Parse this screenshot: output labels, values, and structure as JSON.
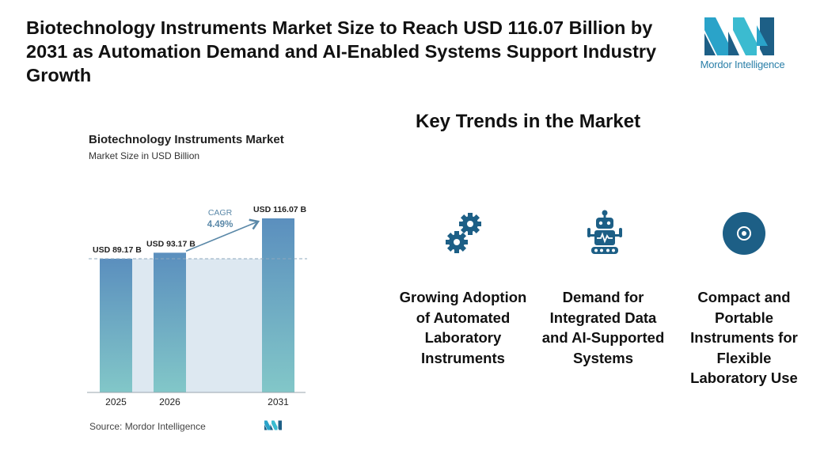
{
  "headline": "Biotechnology Instruments Market Size to Reach USD 116.07 Billion by 2031 as Automation Demand and AI-Enabled Systems Support Industry Growth",
  "logo": {
    "text": "Mordor Intelligence"
  },
  "source": "Source:  Mordor Intelligence",
  "trends": {
    "title": "Key Trends in the Market",
    "items": [
      {
        "label": "Growing Adoption of Automated Laboratory Instruments",
        "icon": "gears-icon"
      },
      {
        "label": "Demand for Integrated Data and AI-Supported Systems",
        "icon": "robot-icon"
      },
      {
        "label": "Compact and Portable Instruments for Flexible Laboratory Use",
        "icon": "target-icon"
      }
    ]
  },
  "colors": {
    "bar_top": "#5b8fbe",
    "bar_bottom": "#82c7c8",
    "band": "#dde8f1",
    "accent": "#1d5f86",
    "cagr": "#5a88a8"
  },
  "chart_data": {
    "type": "bar",
    "title": "Biotechnology Instruments Market",
    "subtitle": "Market Size in USD Billion",
    "categories": [
      "2025",
      "2026",
      "2031"
    ],
    "values": [
      89.17,
      93.17,
      116.07
    ],
    "data_labels": [
      "USD 89.17 B",
      "USD 93.17 B",
      "USD 116.07 B"
    ],
    "cagr_label": "CAGR",
    "cagr_value": "4.49%",
    "ylim": [
      0,
      116.07
    ],
    "xlabel": "",
    "ylabel": ""
  }
}
